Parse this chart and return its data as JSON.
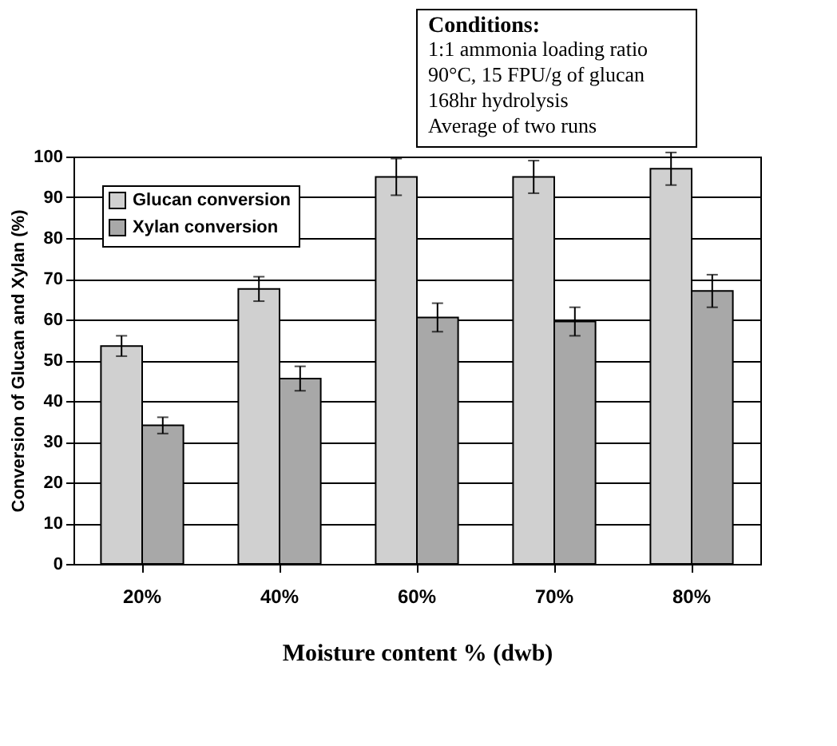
{
  "chart_data": {
    "type": "bar",
    "categories": [
      "20%",
      "40%",
      "60%",
      "70%",
      "80%"
    ],
    "xlabel": "Moisture content % (dwb)",
    "ylabel": "Conversion of Glucan and Xylan (%)",
    "series": [
      {
        "name": "Glucan conversion",
        "color": "#d0d0d0",
        "values": [
          53.5,
          67.5,
          95,
          95,
          97
        ],
        "errors": [
          2.5,
          3,
          4.5,
          4,
          4
        ]
      },
      {
        "name": "Xylan conversion",
        "color": "#a8a8a8",
        "values": [
          34,
          45.5,
          60.5,
          59.5,
          67
        ],
        "errors": [
          2,
          3,
          3.5,
          3.5,
          4
        ]
      }
    ],
    "ylim": [
      0,
      100
    ],
    "yticks": [
      0,
      10,
      20,
      30,
      40,
      50,
      60,
      70,
      80,
      90,
      100
    ],
    "grid": "y",
    "legend": "top left",
    "annotations": [
      "Conditions:",
      "1:1 ammonia loading ratio",
      "90°C, 15 FPU/g of glucan",
      "168hr hydrolysis",
      "Average of two runs"
    ]
  }
}
